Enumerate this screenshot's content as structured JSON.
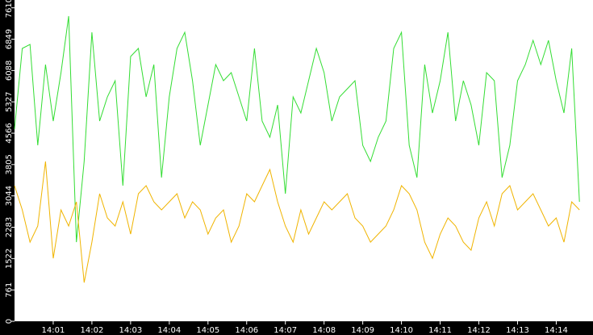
{
  "chart_data": {
    "type": "line",
    "x": [
      0,
      0.2,
      0.4,
      0.6,
      0.8,
      1,
      1.2,
      1.4,
      1.6,
      1.8,
      2,
      2.2,
      2.4,
      2.6,
      2.8,
      3,
      3.2,
      3.4,
      3.6,
      3.8,
      4,
      4.2,
      4.4,
      4.6,
      4.8,
      5,
      5.2,
      5.4,
      5.6,
      5.8,
      6,
      6.2,
      6.4,
      6.6,
      6.8,
      7,
      7.2,
      7.4,
      7.6,
      7.8,
      8,
      8.2,
      8.4,
      8.6,
      8.8,
      9,
      9.2,
      9.4,
      9.6,
      9.8,
      10,
      10.2,
      10.4,
      10.6,
      10.8,
      11,
      11.2,
      11.4,
      11.6,
      11.8,
      12,
      12.2,
      12.4,
      12.6,
      12.8,
      13,
      13.2,
      13.4,
      13.6,
      13.8,
      14,
      14.2,
      14.4,
      14.6
    ],
    "series": [
      {
        "color": "#33dd33",
        "values": [
          4665,
          6625,
          6723,
          4273,
          6233,
          4861,
          6037,
          7409,
          1921,
          3881,
          7017,
          4861,
          5449,
          5841,
          3293,
          6429,
          6625,
          5449,
          6233,
          3489,
          5449,
          6625,
          7017,
          5841,
          4273,
          5253,
          6233,
          5841,
          6037,
          5449,
          4861,
          6625,
          4861,
          4469,
          5253,
          3097,
          5449,
          5057,
          5841,
          6625,
          6037,
          4861,
          5449,
          5645,
          5841,
          4273,
          3881,
          4469,
          4861,
          6625,
          7017,
          4273,
          3489,
          6233,
          5057,
          5841,
          7017,
          4861,
          5841,
          5253,
          4273,
          6037,
          5841,
          3489,
          4273,
          5841,
          6233,
          6821,
          6233,
          6821,
          5841,
          5057,
          6625,
          2901
        ]
      },
      {
        "color": "#f0b400",
        "values": [
          3293,
          2705,
          1921,
          2313,
          3881,
          1529,
          2705,
          2313,
          2901,
          941,
          1921,
          3097,
          2509,
          2313,
          2901,
          2117,
          3097,
          3293,
          2901,
          2705,
          2901,
          3097,
          2509,
          2901,
          2705,
          2117,
          2509,
          2705,
          1921,
          2313,
          3097,
          2901,
          3293,
          3685,
          2901,
          2313,
          1921,
          2705,
          2117,
          2509,
          2901,
          2705,
          2901,
          3097,
          2509,
          2313,
          1921,
          2117,
          2313,
          2705,
          3293,
          3097,
          2705,
          1921,
          1529,
          2117,
          2509,
          2313,
          1921,
          1725,
          2509,
          2901,
          2313,
          3097,
          3293,
          2705,
          2901,
          3097,
          2705,
          2313,
          2509,
          1921,
          2901,
          2705
        ]
      }
    ],
    "ylim": [
      0,
      7800
    ],
    "yticks": [
      0,
      761,
      1522,
      2283,
      3044,
      3805,
      4566,
      5327,
      6088,
      6849,
      7610
    ],
    "xlim": [
      0,
      14.95
    ],
    "xticks": [
      {
        "value": 1,
        "label": "14:01"
      },
      {
        "value": 2,
        "label": "14:02"
      },
      {
        "value": 3,
        "label": "14:03"
      },
      {
        "value": 4,
        "label": "14:04"
      },
      {
        "value": 5,
        "label": "14:05"
      },
      {
        "value": 6,
        "label": "14:06"
      },
      {
        "value": 7,
        "label": "14:07"
      },
      {
        "value": 8,
        "label": "14:08"
      },
      {
        "value": 9,
        "label": "14:09"
      },
      {
        "value": 10,
        "label": "14:10"
      },
      {
        "value": 11,
        "label": "14:11"
      },
      {
        "value": 12,
        "label": "14:12"
      },
      {
        "value": 13,
        "label": "14:13"
      },
      {
        "value": 14,
        "label": "14:14"
      }
    ]
  }
}
